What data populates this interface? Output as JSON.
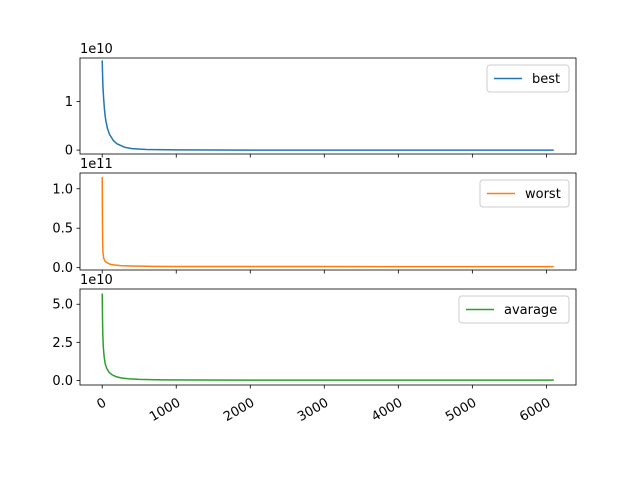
{
  "chart_data": [
    {
      "type": "line",
      "x_range": [
        -300,
        6400
      ],
      "ylim": [
        -0.08,
        1.9
      ],
      "y_exponent_label": "1e10",
      "yticks": [
        {
          "value": 0,
          "label": "0"
        },
        {
          "value": 1,
          "label": "1"
        }
      ],
      "xticks_visible": false,
      "series": [
        {
          "name": "best",
          "color": "#1f77b4",
          "points": [
            [
              0,
              1.85
            ],
            [
              5,
              1.55
            ],
            [
              10,
              1.3
            ],
            [
              20,
              1.05
            ],
            [
              30,
              0.85
            ],
            [
              40,
              0.7
            ],
            [
              50,
              0.6
            ],
            [
              70,
              0.45
            ],
            [
              100,
              0.32
            ],
            [
              150,
              0.2
            ],
            [
              200,
              0.13
            ],
            [
              300,
              0.06
            ],
            [
              400,
              0.03
            ],
            [
              600,
              0.012
            ],
            [
              1000,
              0.004
            ],
            [
              2000,
              0.001
            ],
            [
              6100,
              0.0
            ]
          ]
        }
      ],
      "legend": "top-right"
    },
    {
      "type": "line",
      "x_range": [
        -300,
        6400
      ],
      "ylim": [
        -0.03,
        1.2
      ],
      "y_exponent_label": "1e11",
      "yticks": [
        {
          "value": 0.0,
          "label": "0.0"
        },
        {
          "value": 0.5,
          "label": "0.5"
        },
        {
          "value": 1.0,
          "label": "1.0"
        }
      ],
      "xticks_visible": false,
      "series": [
        {
          "name": "worst",
          "color": "#ff7f0e",
          "points": [
            [
              0,
              1.15
            ],
            [
              3,
              0.6
            ],
            [
              6,
              0.35
            ],
            [
              10,
              0.2
            ],
            [
              20,
              0.12
            ],
            [
              40,
              0.08
            ],
            [
              70,
              0.06
            ],
            [
              100,
              0.045
            ],
            [
              150,
              0.035
            ],
            [
              250,
              0.025
            ],
            [
              400,
              0.02
            ],
            [
              700,
              0.016
            ],
            [
              1000,
              0.015
            ],
            [
              2000,
              0.014
            ],
            [
              3000,
              0.014
            ],
            [
              4000,
              0.013
            ],
            [
              5000,
              0.013
            ],
            [
              6100,
              0.013
            ]
          ]
        }
      ],
      "legend": "top-right"
    },
    {
      "type": "line",
      "x_range": [
        -300,
        6400
      ],
      "ylim": [
        -0.3,
        6.0
      ],
      "y_exponent_label": "1e10",
      "yticks": [
        {
          "value": 0.0,
          "label": "0.0"
        },
        {
          "value": 2.5,
          "label": "2.5"
        },
        {
          "value": 5.0,
          "label": "5.0"
        }
      ],
      "xticks_visible": true,
      "xticks": [
        {
          "value": 0,
          "label": "0"
        },
        {
          "value": 1000,
          "label": "1000"
        },
        {
          "value": 2000,
          "label": "2000"
        },
        {
          "value": 3000,
          "label": "3000"
        },
        {
          "value": 4000,
          "label": "4000"
        },
        {
          "value": 5000,
          "label": "5000"
        },
        {
          "value": 6000,
          "label": "6000"
        }
      ],
      "series": [
        {
          "name": "avarage",
          "color": "#2ca02c",
          "points": [
            [
              0,
              5.7
            ],
            [
              4,
              4.0
            ],
            [
              8,
              3.0
            ],
            [
              15,
              2.2
            ],
            [
              25,
              1.6
            ],
            [
              40,
              1.1
            ],
            [
              60,
              0.8
            ],
            [
              90,
              0.55
            ],
            [
              130,
              0.38
            ],
            [
              180,
              0.26
            ],
            [
              250,
              0.17
            ],
            [
              350,
              0.11
            ],
            [
              500,
              0.07
            ],
            [
              800,
              0.04
            ],
            [
              1200,
              0.03
            ],
            [
              2000,
              0.022
            ],
            [
              3000,
              0.02
            ],
            [
              4000,
              0.019
            ],
            [
              5000,
              0.019
            ],
            [
              6100,
              0.018
            ]
          ]
        }
      ],
      "legend": "top-right"
    }
  ]
}
